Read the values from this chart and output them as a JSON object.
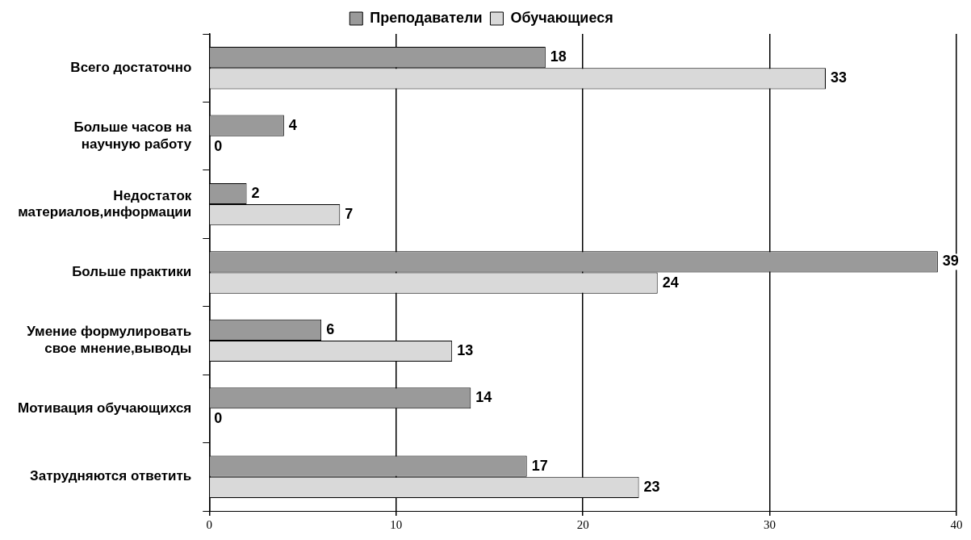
{
  "chart_data": {
    "type": "bar",
    "orientation": "horizontal",
    "categories": [
      "Всего достаточно",
      "Больше часов на научную работу",
      "Недостаток материалов,информации",
      "Больше практики",
      "Умение формулировать свое мнение,выводы",
      "Мотивация обучающихся",
      "Затрудняются ответить"
    ],
    "series": [
      {
        "name": "Преподаватели",
        "color": "#9a9a9a",
        "values": [
          18,
          4,
          2,
          39,
          6,
          14,
          17
        ]
      },
      {
        "name": "Обучающиеся",
        "color": "#d9d9d9",
        "values": [
          33,
          0,
          7,
          24,
          13,
          0,
          23
        ]
      }
    ],
    "xlim": [
      0,
      40
    ],
    "xticks": [
      0,
      10,
      20,
      30,
      40
    ],
    "grid": "x",
    "legend": "top",
    "data_labels": true
  }
}
